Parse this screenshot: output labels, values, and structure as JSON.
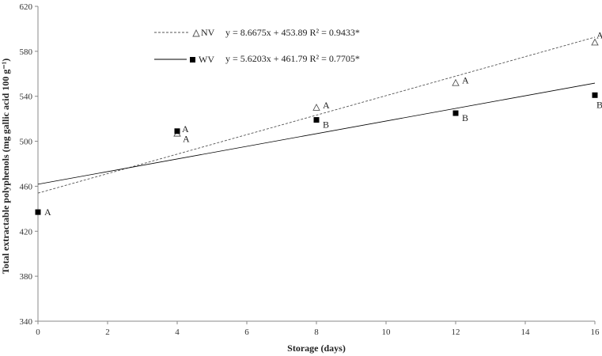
{
  "chart_data": {
    "type": "scatter",
    "xlabel": "Storage (days)",
    "ylabel": "Total extractable polyphenols (mg gallic acid 100 g⁻¹)",
    "xlim": [
      0,
      16
    ],
    "ylim": [
      340,
      620
    ],
    "x_ticks": [
      "0",
      "2",
      "4",
      "6",
      "8",
      "10",
      "12",
      "14",
      "16"
    ],
    "y_ticks": [
      "340",
      "380",
      "420",
      "460",
      "500",
      "540",
      "580",
      "620"
    ],
    "grid": false,
    "series": [
      {
        "name": "NV",
        "marker": "open-triangle",
        "line_style": "dashed",
        "color": "#555555",
        "equation": "y = 8.6675x + 453.89 R² = 0.9433*",
        "trend": {
          "slope": 8.6675,
          "intercept": 453.89
        },
        "points": [
          {
            "x": 4,
            "y": 507,
            "label": "A"
          },
          {
            "x": 8,
            "y": 530,
            "label": "A"
          },
          {
            "x": 12,
            "y": 552,
            "label": "A"
          },
          {
            "x": 16,
            "y": 588,
            "label": "A"
          }
        ]
      },
      {
        "name": "WV",
        "marker": "filled-square",
        "line_style": "solid",
        "color": "#000000",
        "equation": "y = 5.6203x + 461.79 R² = 0.7705*",
        "trend": {
          "slope": 5.6203,
          "intercept": 461.79
        },
        "points": [
          {
            "x": 0,
            "y": 437,
            "label": "A"
          },
          {
            "x": 4,
            "y": 509,
            "label": "A"
          },
          {
            "x": 8,
            "y": 519,
            "label": "B"
          },
          {
            "x": 12,
            "y": 525,
            "label": "B"
          },
          {
            "x": 16,
            "y": 541,
            "label": "B"
          }
        ]
      }
    ]
  }
}
